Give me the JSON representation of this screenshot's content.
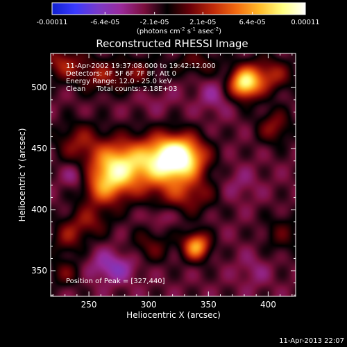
{
  "chart_data": {
    "type": "heatmap",
    "title": "Reconstructed RHESSI Image",
    "xlabel": "Heliocentric X (arcsec)",
    "ylabel": "Heliocentric Y (arcsec)",
    "xlim": [
      218,
      423
    ],
    "ylim": [
      329,
      528
    ],
    "x_ticks": [
      250,
      300,
      350,
      400
    ],
    "y_ticks": [
      350,
      400,
      450,
      500
    ],
    "colorbar": {
      "range": [
        -0.00011,
        0.00011
      ],
      "tick_labels": [
        "-0.00011",
        "-6.4e-05",
        "-2.1e-05",
        "2.1e-05",
        "6.4e-05",
        "0.00011"
      ],
      "tick_values": [
        -0.00011,
        -6.4e-05,
        -2.1e-05,
        2.1e-05,
        6.4e-05,
        0.00011
      ],
      "unit_label": "(photons cm",
      "unit_exp1": "-2",
      "unit_mid": " s",
      "unit_exp2": "-1",
      "unit_end": " asec",
      "unit_exp3": "-2",
      "unit_close": ")",
      "colors": [
        "#1020d0",
        "#3a3aff",
        "#7a3ac8",
        "#9a2a9a",
        "#7a0e3c",
        "#000000",
        "#6a0008",
        "#c02a0a",
        "#f26a10",
        "#ffba28",
        "#ffff80",
        "#ffffff"
      ]
    },
    "annotations": [
      "11-Apr-2002 19:37:08.000 to 19:42:12.000",
      "Detectors: 4F 5F 6F 7F 8F, Att 0",
      "Energy Range: 12.0 - 25.0 keV",
      "Clean     Total counts: 2.18E+03"
    ],
    "peak_label": "Position of Peak = [327,440]",
    "peak": [
      327,
      440
    ],
    "background": -2.5e-05,
    "sources": [
      {
        "x": 325,
        "y": 443,
        "sx": 15,
        "sy": 12,
        "v": 0.000125
      },
      {
        "x": 300,
        "y": 437,
        "sx": 22,
        "sy": 16,
        "v": 7.5e-05
      },
      {
        "x": 272,
        "y": 436,
        "sx": 14,
        "sy": 13,
        "v": 7e-05
      },
      {
        "x": 262,
        "y": 418,
        "sx": 14,
        "sy": 12,
        "v": 6e-05
      },
      {
        "x": 242,
        "y": 455,
        "sx": 14,
        "sy": 12,
        "v": 4e-05
      },
      {
        "x": 332,
        "y": 412,
        "sx": 18,
        "sy": 11,
        "v": 4e-05
      },
      {
        "x": 380,
        "y": 503,
        "sx": 9,
        "sy": 9,
        "v": 0.000105
      },
      {
        "x": 400,
        "y": 510,
        "sx": 14,
        "sy": 10,
        "v": 5e-05
      },
      {
        "x": 405,
        "y": 468,
        "sx": 10,
        "sy": 10,
        "v": 4e-05
      },
      {
        "x": 340,
        "y": 370,
        "sx": 8,
        "sy": 8,
        "v": 9e-05
      },
      {
        "x": 260,
        "y": 510,
        "sx": 14,
        "sy": 10,
        "v": 4e-05
      },
      {
        "x": 228,
        "y": 520,
        "sx": 12,
        "sy": 10,
        "v": 4.5e-05
      },
      {
        "x": 292,
        "y": 512,
        "sx": 12,
        "sy": 10,
        "v": 3e-05
      },
      {
        "x": 340,
        "y": 520,
        "sx": 14,
        "sy": 8,
        "v": 3e-05
      },
      {
        "x": 250,
        "y": 390,
        "sx": 12,
        "sy": 9,
        "v": 3.5e-05
      },
      {
        "x": 232,
        "y": 377,
        "sx": 10,
        "sy": 10,
        "v": 3.5e-05
      },
      {
        "x": 302,
        "y": 370,
        "sx": 12,
        "sy": 10,
        "v": 3e-05
      },
      {
        "x": 412,
        "y": 380,
        "sx": 12,
        "sy": 12,
        "v": 2.5e-05
      },
      {
        "x": 230,
        "y": 348,
        "sx": 10,
        "sy": 8,
        "v": 3e-05
      },
      {
        "x": 270,
        "y": 353,
        "sx": 14,
        "sy": 9,
        "v": -3.5e-05
      },
      {
        "x": 240,
        "y": 427,
        "sx": 8,
        "sy": 8,
        "v": -3e-05
      },
      {
        "x": 375,
        "y": 420,
        "sx": 12,
        "sy": 10,
        "v": -1.5e-05
      },
      {
        "x": 355,
        "y": 493,
        "sx": 10,
        "sy": 10,
        "v": -2e-05
      },
      {
        "x": 305,
        "y": 490,
        "sx": 12,
        "sy": 8,
        "v": -1e-05
      },
      {
        "x": 310,
        "y": 395,
        "sx": 8,
        "sy": 6,
        "v": -2e-05
      },
      {
        "x": 388,
        "y": 350,
        "sx": 10,
        "sy": 10,
        "v": -1.5e-05
      }
    ]
  },
  "footer": {
    "timestamp": "11-Apr-2013 22:07"
  }
}
